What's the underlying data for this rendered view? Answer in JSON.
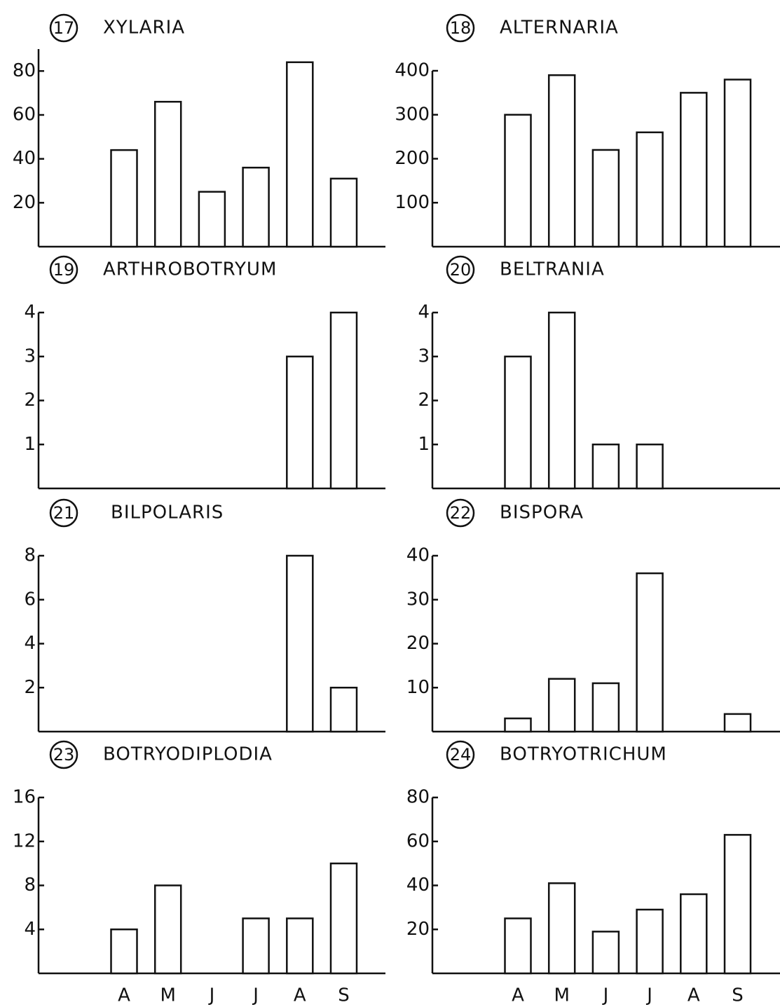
{
  "chart_data": [
    {
      "type": "bar",
      "number": "17",
      "title": "XYLARIA",
      "values": [
        44,
        66,
        25,
        36,
        84,
        31
      ],
      "ylim": [
        0,
        90
      ],
      "yticks": [
        20,
        40,
        60,
        80
      ],
      "color": "#ffffff"
    },
    {
      "type": "bar",
      "number": "18",
      "title": "ALTERNARIA",
      "values": [
        300,
        390,
        220,
        260,
        350,
        380
      ],
      "ylim": [
        0,
        400
      ],
      "yticks": [
        100,
        200,
        300,
        400
      ],
      "color": "#ffffff"
    },
    {
      "type": "bar",
      "number": "19",
      "title": "ARTHROBOTRYUM",
      "values": [
        0,
        0,
        0,
        0,
        3,
        4
      ],
      "ylim": [
        0,
        4
      ],
      "yticks": [
        1,
        2,
        3,
        4
      ],
      "color": "#ffffff"
    },
    {
      "type": "bar",
      "number": "20",
      "title": "BELTRANIA",
      "values": [
        3,
        4,
        1,
        1,
        0,
        0
      ],
      "ylim": [
        0,
        4
      ],
      "yticks": [
        1,
        2,
        3,
        4
      ],
      "color": "#ffffff"
    },
    {
      "type": "bar",
      "number": "21",
      "title": "BILPOLARIS",
      "values": [
        0,
        0,
        0,
        0,
        8,
        2
      ],
      "ylim": [
        0,
        8
      ],
      "yticks": [
        2,
        4,
        6,
        8
      ],
      "color": "#ffffff"
    },
    {
      "type": "bar",
      "number": "22",
      "title": "BISPORA",
      "values": [
        3,
        12,
        11,
        36,
        0,
        4
      ],
      "ylim": [
        0,
        40
      ],
      "yticks": [
        10,
        20,
        30,
        40
      ],
      "color": "#ffffff"
    },
    {
      "type": "bar",
      "number": "23",
      "title": "BOTRYODIPLODIA",
      "categories": [
        "A",
        "M",
        "J",
        "J",
        "A",
        "S"
      ],
      "values": [
        4,
        8,
        0,
        5,
        5,
        10
      ],
      "ylim": [
        0,
        16
      ],
      "yticks": [
        4,
        8,
        12,
        16
      ],
      "color": "#ffffff"
    },
    {
      "type": "bar",
      "number": "24",
      "title": "BOTRYOTRICHUM",
      "categories": [
        "A",
        "M",
        "J",
        "J",
        "A",
        "S"
      ],
      "values": [
        25,
        41,
        19,
        29,
        36,
        63
      ],
      "ylim": [
        0,
        80
      ],
      "yticks": [
        20,
        40,
        60,
        80
      ],
      "color": "#ffffff"
    }
  ]
}
